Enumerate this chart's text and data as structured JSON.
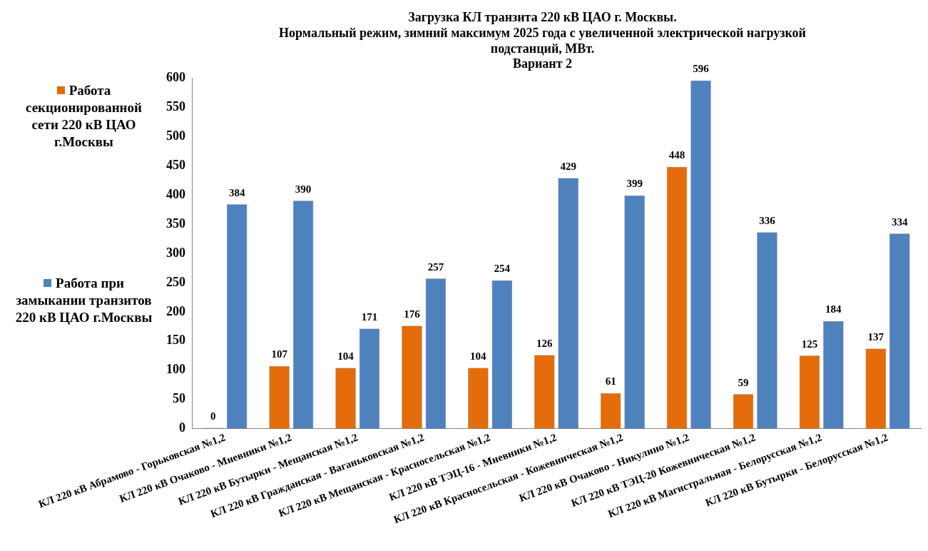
{
  "chart_data": {
    "type": "bar",
    "title": [
      "Загрузка КЛ транзита 220 кВ ЦАО г. Москвы.",
      "Нормальный режим, зимний максимум 2025 года с увеличенной электрической нагрузкой",
      "подстанций, МВт.",
      "Вариант 2"
    ],
    "categories": [
      "КЛ 220 кВ Абрамово - Горьковская №1,2",
      "КЛ 220 кВ Очаково - Мневники №1,2",
      "КЛ 220 кВ Бутырки - Мещанская №1,2",
      "КЛ 220 кВ Гражданская - Ваганьковская №1,2",
      "КЛ 220 кВ Мещанская - Красносельская №1,2",
      "КЛ 220 кВ ТЭЦ-16 - Мневники №1,2",
      "КЛ 220 кВ Красносельская - Кожевническая №1,2",
      "КЛ 220 кВ Очаково - Никулино №1,2",
      "КЛ 220 кВ ТЭЦ-20 Кожевническая №1,2",
      "КЛ 220 кВ Магистральная - Белорусская №1,2",
      "КЛ 220 кВ Бутырки - Белорусская №1,2"
    ],
    "series": [
      {
        "name": "Работа секционированной сети 220 кВ ЦАО г.Москвы",
        "color": "#e46c0a",
        "values": [
          0,
          107,
          104,
          176,
          104,
          126,
          61,
          448,
          59,
          125,
          137
        ]
      },
      {
        "name": "Работа при замыкании транзитов 220 кВ ЦАО г.Москвы",
        "color": "#4f81bd",
        "values": [
          384,
          390,
          171,
          257,
          254,
          429,
          399,
          596,
          336,
          184,
          334
        ]
      }
    ],
    "ylim": [
      0,
      600
    ],
    "yticks": [
      0,
      50,
      100,
      150,
      200,
      250,
      300,
      350,
      400,
      450,
      500,
      550,
      600
    ],
    "data_labels": true,
    "grid": false,
    "legend": "left"
  }
}
